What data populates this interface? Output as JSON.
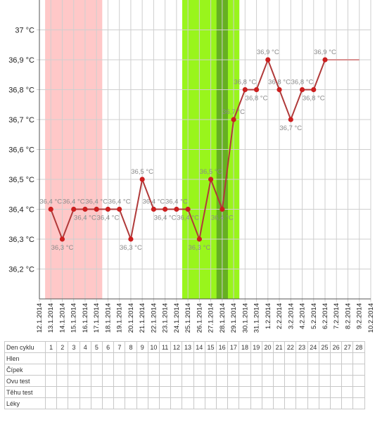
{
  "chart_data": {
    "type": "line",
    "categories": [
      "12.1.2014",
      "13.1.2014",
      "14.1.2014",
      "15.1.2014",
      "16.1.2014",
      "17.1.2014",
      "18.1.2014",
      "19.1.2014",
      "20.1.2014",
      "21.1.2014",
      "22.1.2014",
      "23.1.2014",
      "24.1.2014",
      "25.1.2014",
      "26.1.2014",
      "27.1.2014",
      "28.1.2014",
      "29.1.2014",
      "30.1.2014",
      "31.1.2014",
      "1.2.2014",
      "2.2.2014",
      "3.2.2014",
      "4.2.2014",
      "5.2.2014",
      "6.2.2014",
      "7.2.2014",
      "8.2.2014",
      "9.2.2014",
      "10.2.2014"
    ],
    "series": [
      {
        "color": "#b03a3a",
        "marker_color": "#cc1f1f",
        "values": [
          null,
          36.4,
          36.3,
          36.4,
          36.4,
          36.4,
          36.4,
          36.4,
          36.3,
          36.5,
          36.4,
          36.4,
          36.4,
          36.4,
          36.3,
          36.5,
          36.4,
          36.7,
          36.8,
          36.8,
          36.9,
          36.8,
          36.7,
          36.8,
          36.8,
          36.9,
          null,
          null,
          null,
          null
        ],
        "value_labels": [
          null,
          "36,4 °C",
          "36,3 °C",
          "36,4 °C",
          "36,4 °C",
          "36,4 °C",
          "36,4 °C",
          "36,4 °C",
          "36,3 °C",
          "36,5 °C",
          "36,4 °C",
          "36,4 °C",
          "36,4 °C",
          "36,4 °C",
          "36,3 °C",
          "36,5 °C",
          "36,4 °C",
          "36,7 °C",
          "36,8 °C",
          "36,8 °C",
          "36,9 °C",
          "36,8 °C",
          "36,7 °C",
          "36,8 °C",
          "36,8 °C",
          "36,9 °C",
          null,
          null,
          null,
          null
        ]
      },
      {
        "color": "#d89090",
        "values": [
          null,
          null,
          null,
          null,
          null,
          null,
          null,
          null,
          null,
          null,
          null,
          null,
          null,
          null,
          null,
          null,
          null,
          null,
          null,
          null,
          null,
          null,
          null,
          null,
          null,
          36.9,
          36.9,
          36.9,
          36.9,
          null
        ]
      }
    ],
    "bands": [
      {
        "start": "13.1.2014",
        "end": "17.1.2014",
        "color": "#ffc8c8"
      },
      {
        "start": "25.1.2014",
        "end": "29.1.2014",
        "color": "#99f51c"
      },
      {
        "start": "28.1.2014",
        "end": "28.1.2014",
        "color": "#66b022"
      }
    ],
    "ylim": [
      36.1,
      37.1
    ],
    "yticks": [
      {
        "value": 36.2,
        "label": "36,2 °C"
      },
      {
        "value": 36.3,
        "label": "36,3 °C"
      },
      {
        "value": 36.4,
        "label": "36,4 °C"
      },
      {
        "value": 36.5,
        "label": "36,5 °C"
      },
      {
        "value": 36.6,
        "label": "36,6 °C"
      },
      {
        "value": 36.7,
        "label": "36,7 °C"
      },
      {
        "value": 36.8,
        "label": "36,8 °C"
      },
      {
        "value": 36.9,
        "label": "36,9 °C"
      },
      {
        "value": 37,
        "label": "37 °C"
      }
    ],
    "grid": true
  },
  "table": {
    "header": "Den cyklu",
    "days": [
      1,
      2,
      3,
      4,
      5,
      6,
      7,
      8,
      9,
      10,
      11,
      12,
      13,
      14,
      15,
      16,
      17,
      18,
      19,
      20,
      21,
      22,
      23,
      24,
      25,
      26,
      27,
      28
    ],
    "rows": [
      "Hlen",
      "Čípek",
      "Ovu test",
      "Těhu test",
      "Léky"
    ]
  }
}
